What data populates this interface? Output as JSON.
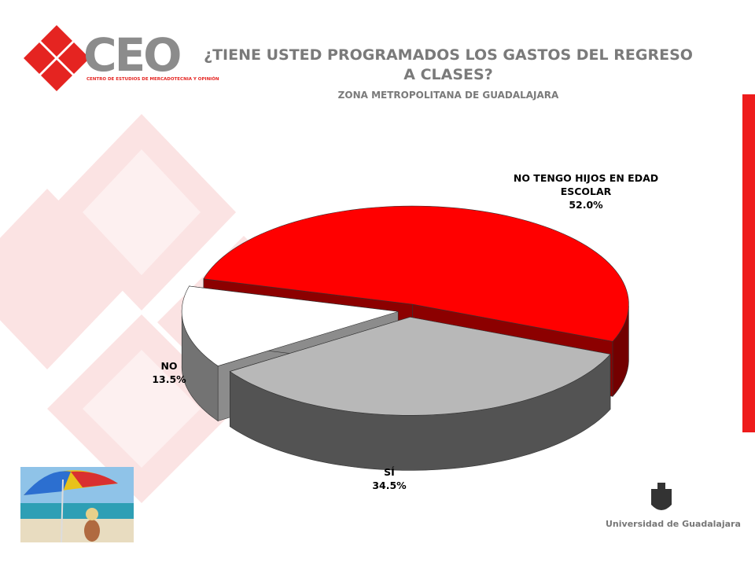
{
  "header": {
    "logo": "CEO",
    "logo_subtitle": "CENTRO DE ESTUDIOS DE MERCADOTECNIA Y OPINIÓN"
  },
  "footer": {
    "university": "Universidad de Guadalajara"
  },
  "chart_data": {
    "type": "pie",
    "title": "¿TIENE USTED PROGRAMADOS LOS GASTOS DEL REGRESO A CLASES?",
    "subtitle": "ZONA METROPOLITANA DE GUADALAJARA",
    "categories": [
      "NO TENGO HIJOS EN EDAD ESCOLAR",
      "SÍ",
      "NO"
    ],
    "values": [
      52.0,
      34.5,
      13.5
    ],
    "value_labels": [
      "52.0%",
      "34.5%",
      "13.5%"
    ],
    "colors": [
      "#ff0000",
      "#b8b8b8",
      "#ffffff"
    ]
  }
}
